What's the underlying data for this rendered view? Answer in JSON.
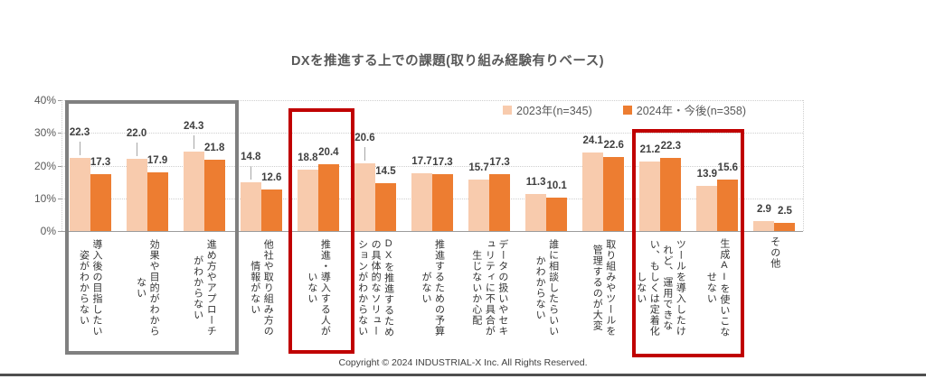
{
  "title": "DXを推進する上での課題(取り組み経験有りベース)",
  "copyright": "Copyright © 2024 INDUSTRIAL-X Inc. All Rights Reserved.",
  "chart_data": {
    "type": "bar",
    "title": "DXを推進する上での課題(取り組み経験有りベース)",
    "xlabel": "",
    "ylabel": "",
    "ylim": [
      0,
      40
    ],
    "yticks": [
      {
        "value": 0,
        "label": "0%"
      },
      {
        "value": 10,
        "label": "10%"
      },
      {
        "value": 20,
        "label": "20%"
      },
      {
        "value": 30,
        "label": "30%"
      },
      {
        "value": 40,
        "label": "40%"
      }
    ],
    "grid": true,
    "legend_position": "top-right-inside",
    "categories": [
      "導入後の目指したい姿がわからない",
      "効果や目的がわからない",
      "進め方やアプローチがわからない",
      "他社や取り組み方の情報がない",
      "推進・導入する人がいない",
      "DXを推進するための具体的なソリューションがわからない",
      "推進するための予算がない",
      "データの扱いやセキュリティに不具合が生じないか心配",
      "誰に相談したらいいかわからない",
      "取り組みやツールを管理するのが大変",
      "ツールを導入したけれど、運用できない、もしくは定着化しない",
      "生成AIを使いこなせない",
      "その他"
    ],
    "series": [
      {
        "name": "2023年(n=345)",
        "color": "#F8CBAD",
        "values": [
          22.3,
          22.0,
          24.3,
          14.8,
          18.8,
          20.6,
          17.7,
          15.7,
          11.3,
          24.1,
          21.2,
          13.9,
          2.9
        ]
      },
      {
        "name": "2024年・今後(n=358)",
        "color": "#ED7D31",
        "values": [
          17.3,
          17.9,
          21.8,
          12.6,
          20.4,
          14.5,
          17.3,
          17.3,
          10.1,
          22.6,
          22.3,
          15.6,
          2.5
        ]
      }
    ],
    "annotations": [
      {
        "name": "gray-box",
        "color": "#808080",
        "category_start": 0,
        "category_end": 2
      },
      {
        "name": "red-box-1",
        "color": "#C00000",
        "category_start": 4,
        "category_end": 4
      },
      {
        "name": "red-box-2",
        "color": "#C00000",
        "category_start": 10,
        "category_end": 11
      }
    ]
  }
}
